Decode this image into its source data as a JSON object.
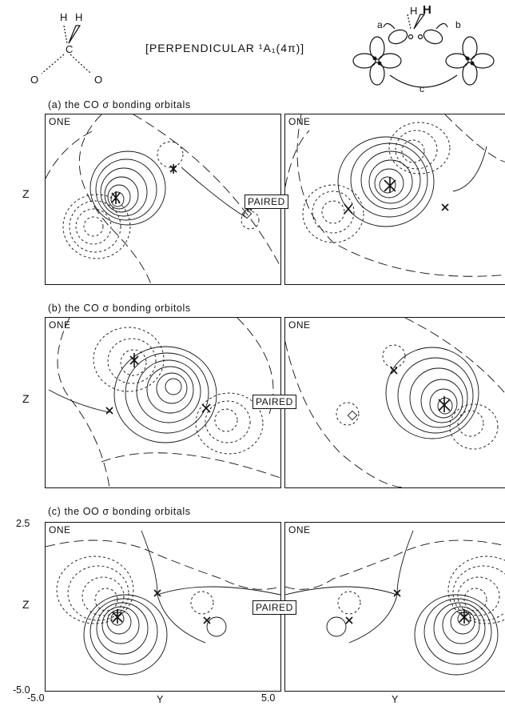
{
  "header": {
    "molecule_atoms": {
      "h_left": "H",
      "h_right": "H",
      "carbon": "C",
      "o_left": "O",
      "o_right": "O"
    },
    "title": "[PERPENDICULAR ¹A₁(4π)]",
    "diagram_atoms": {
      "h_left": "H",
      "h_right": "H"
    },
    "diagram_labels": {
      "a": "a",
      "b": "b",
      "c": "c"
    }
  },
  "sections": [
    {
      "title": "(a) the CO σ bonding orbitals",
      "left_label": "ONE",
      "right_label": "ONE",
      "center_label": "PAIRED",
      "axis_label": "Z"
    },
    {
      "title": "(b) the CO σ bonding orbitols",
      "left_label": "ONE",
      "right_label": "ONE",
      "center_label": "PAIRED",
      "axis_label": "Z"
    },
    {
      "title": "(c) the OO σ bonding orbitals",
      "left_label": "ONE",
      "right_label": "ONE",
      "center_label": "PAIRED",
      "axis_label": "Z"
    }
  ],
  "axes": {
    "y_top_tick": "2.5",
    "y_bottom_tick": "-5.0",
    "x_left_tick": "-5.0",
    "x_right_tick": "5.0",
    "x_label_left": "Y",
    "x_label_right": "Y"
  }
}
